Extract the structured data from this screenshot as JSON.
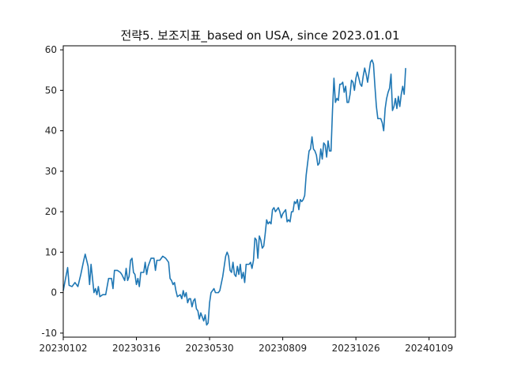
{
  "chart_data": {
    "type": "line",
    "title": "전략5. 보조지표_based on USA, since 2023.01.01",
    "xlabel": "",
    "ylabel": "",
    "ylim": [
      -11,
      61
    ],
    "yticks": [
      -10,
      0,
      10,
      20,
      30,
      40,
      50,
      60
    ],
    "xtick_labels": [
      "20230102",
      "20230316",
      "20230530",
      "20230809",
      "20231026",
      "20240109"
    ],
    "xtick_positions": [
      0,
      50,
      100,
      150,
      200,
      250
    ],
    "x_count": 269,
    "grid": false,
    "legend": "none",
    "series_color": "#1f77b4",
    "series": [
      {
        "points": [
          [
            0,
            0.5
          ],
          [
            3,
            6.2
          ],
          [
            4,
            1.8
          ],
          [
            6,
            1.5
          ],
          [
            8,
            2.5
          ],
          [
            10,
            1.5
          ],
          [
            12,
            4.5
          ],
          [
            14,
            8.0
          ],
          [
            15,
            9.5
          ],
          [
            17,
            6.5
          ],
          [
            18,
            2.0
          ],
          [
            19,
            7.0
          ],
          [
            21,
            0.0
          ],
          [
            22,
            1.0
          ],
          [
            23,
            -0.5
          ],
          [
            24,
            1.5
          ],
          [
            25,
            -1.0
          ],
          [
            27,
            -0.5
          ],
          [
            29,
            -0.5
          ],
          [
            31,
            3.5
          ],
          [
            33,
            3.5
          ],
          [
            34,
            1.0
          ],
          [
            35,
            5.5
          ],
          [
            37,
            5.5
          ],
          [
            39,
            5.0
          ],
          [
            40,
            4.5
          ],
          [
            42,
            3.0
          ],
          [
            43,
            6.0
          ],
          [
            44,
            3.0
          ],
          [
            45,
            4.0
          ],
          [
            46,
            8.0
          ],
          [
            47,
            8.5
          ],
          [
            48,
            5.0
          ],
          [
            49,
            4.5
          ],
          [
            50,
            2.0
          ],
          [
            51,
            3.5
          ],
          [
            52,
            1.5
          ],
          [
            53,
            5.0
          ],
          [
            55,
            5.0
          ],
          [
            56,
            7.5
          ],
          [
            57,
            4.5
          ],
          [
            58,
            6.5
          ],
          [
            60,
            8.5
          ],
          [
            62,
            8.5
          ],
          [
            63,
            5.5
          ],
          [
            64,
            8.0
          ],
          [
            66,
            8.0
          ],
          [
            68,
            9.0
          ],
          [
            70,
            8.5
          ],
          [
            72,
            7.5
          ],
          [
            73,
            3.5
          ],
          [
            74,
            3.0
          ],
          [
            75,
            2.0
          ],
          [
            76,
            2.5
          ],
          [
            77,
            0.5
          ],
          [
            78,
            -1.0
          ],
          [
            80,
            -0.5
          ],
          [
            81,
            -1.5
          ],
          [
            82,
            0.5
          ],
          [
            83,
            -1.0
          ],
          [
            84,
            0.0
          ],
          [
            85,
            -2.5
          ],
          [
            86,
            -1.5
          ],
          [
            87,
            -1.5
          ],
          [
            88,
            -3.5
          ],
          [
            89,
            -2.0
          ],
          [
            90,
            -1.5
          ],
          [
            91,
            -4.0
          ],
          [
            92,
            -4.5
          ],
          [
            93,
            -6.5
          ],
          [
            94,
            -5.0
          ],
          [
            95,
            -6.0
          ],
          [
            96,
            -7.0
          ],
          [
            97,
            -5.5
          ],
          [
            98,
            -8.0
          ],
          [
            99,
            -7.5
          ],
          [
            100,
            -2.5
          ],
          [
            101,
            0.0
          ],
          [
            102,
            0.5
          ],
          [
            103,
            1.0
          ],
          [
            104,
            0.0
          ],
          [
            106,
            0.0
          ],
          [
            107,
            0.5
          ],
          [
            109,
            4.0
          ],
          [
            110,
            6.5
          ],
          [
            111,
            9.0
          ],
          [
            112,
            10.0
          ],
          [
            113,
            9.0
          ],
          [
            114,
            5.5
          ],
          [
            115,
            5.0
          ],
          [
            116,
            7.5
          ],
          [
            117,
            4.5
          ],
          [
            118,
            4.0
          ],
          [
            119,
            6.5
          ],
          [
            120,
            4.5
          ],
          [
            121,
            7.0
          ],
          [
            122,
            3.5
          ],
          [
            123,
            5.0
          ],
          [
            124,
            2.5
          ],
          [
            125,
            7.0
          ],
          [
            127,
            7.0
          ],
          [
            128,
            7.5
          ],
          [
            129,
            6.0
          ],
          [
            130,
            8.0
          ],
          [
            131,
            13.5
          ],
          [
            132,
            13.0
          ],
          [
            133,
            8.5
          ],
          [
            134,
            14.0
          ],
          [
            135,
            13.0
          ],
          [
            136,
            11.0
          ],
          [
            137,
            11.5
          ],
          [
            138,
            14.5
          ],
          [
            139,
            18.0
          ],
          [
            140,
            17.0
          ],
          [
            141,
            17.5
          ],
          [
            142,
            17.0
          ],
          [
            143,
            20.5
          ],
          [
            144,
            21.0
          ],
          [
            145,
            20.0
          ],
          [
            146,
            20.5
          ],
          [
            147,
            21.0
          ],
          [
            148,
            20.0
          ],
          [
            149,
            18.5
          ],
          [
            150,
            19.5
          ],
          [
            151,
            20.0
          ],
          [
            152,
            20.5
          ],
          [
            153,
            17.5
          ],
          [
            154,
            18.0
          ],
          [
            155,
            17.5
          ],
          [
            156,
            20.0
          ],
          [
            157,
            20.0
          ],
          [
            158,
            22.5
          ],
          [
            159,
            22.0
          ],
          [
            160,
            23.0
          ],
          [
            161,
            20.5
          ],
          [
            162,
            23.0
          ],
          [
            163,
            22.5
          ],
          [
            164,
            23.0
          ],
          [
            165,
            24.0
          ],
          [
            166,
            29.0
          ],
          [
            167,
            32.0
          ],
          [
            168,
            35.0
          ],
          [
            169,
            35.5
          ],
          [
            170,
            38.5
          ],
          [
            171,
            35.5
          ],
          [
            172,
            35.0
          ],
          [
            173,
            34.0
          ],
          [
            174,
            31.5
          ],
          [
            175,
            32.0
          ],
          [
            176,
            35.5
          ],
          [
            177,
            33.0
          ],
          [
            178,
            37.0
          ],
          [
            179,
            36.5
          ],
          [
            180,
            33.5
          ],
          [
            181,
            37.5
          ],
          [
            182,
            35.0
          ],
          [
            183,
            35.0
          ],
          [
            184,
            45.0
          ],
          [
            185,
            53.0
          ],
          [
            186,
            47.0
          ],
          [
            187,
            48.0
          ],
          [
            188,
            47.5
          ],
          [
            189,
            51.5
          ],
          [
            190,
            51.5
          ],
          [
            191,
            52.0
          ],
          [
            192,
            49.5
          ],
          [
            193,
            51.0
          ],
          [
            194,
            47.0
          ],
          [
            195,
            47.0
          ],
          [
            196,
            49.0
          ],
          [
            197,
            52.5
          ],
          [
            198,
            52.0
          ],
          [
            199,
            50.0
          ],
          [
            200,
            53.0
          ],
          [
            201,
            54.5
          ],
          [
            202,
            53.0
          ],
          [
            203,
            51.5
          ],
          [
            204,
            51.0
          ],
          [
            205,
            53.5
          ],
          [
            206,
            55.5
          ],
          [
            207,
            54.0
          ],
          [
            208,
            52.0
          ],
          [
            209,
            54.5
          ],
          [
            210,
            57.0
          ],
          [
            211,
            57.5
          ],
          [
            212,
            56.5
          ],
          [
            213,
            51.0
          ],
          [
            214,
            46.0
          ],
          [
            215,
            43.0
          ],
          [
            217,
            43.0
          ],
          [
            218,
            42.0
          ],
          [
            219,
            40.0
          ],
          [
            220,
            45.5
          ],
          [
            221,
            48.0
          ],
          [
            222,
            49.5
          ],
          [
            223,
            50.5
          ],
          [
            224,
            54.0
          ],
          [
            225,
            45.0
          ],
          [
            226,
            46.0
          ],
          [
            227,
            48.0
          ],
          [
            228,
            45.5
          ],
          [
            229,
            48.5
          ],
          [
            230,
            46.0
          ],
          [
            231,
            49.0
          ],
          [
            232,
            51.0
          ],
          [
            233,
            49.0
          ],
          [
            234,
            55.5
          ]
        ]
      }
    ]
  }
}
